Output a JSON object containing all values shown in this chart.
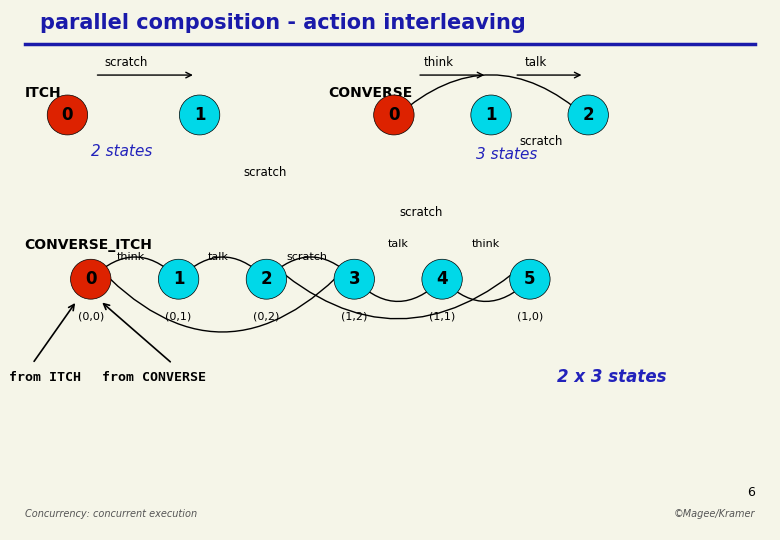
{
  "title": "parallel composition - action interleaving",
  "title_color": "#1a1aaa",
  "title_fontsize": 15,
  "bg_color": "#f5f5e8",
  "divider_color": "#1a1aaa",
  "cyan_color": "#00d8e8",
  "red_color": "#dd2200",
  "black": "#000000",
  "blue_text": "#2222bb",
  "itch_label": "ITCH",
  "converse_label": "CONVERSE",
  "converse_itch_label": "CONVERSE_ITCH",
  "two_states": "2 states",
  "three_states": "3 states",
  "two_x_three": "2 x 3 states",
  "from_itch": "from ITCH",
  "from_converse": "from CONVERSE",
  "footer": "Concurrency: concurrent execution",
  "copyright": "©Magee/Kramer",
  "page_num": "6",
  "scratch": "scratch",
  "think": "think",
  "talk": "talk"
}
